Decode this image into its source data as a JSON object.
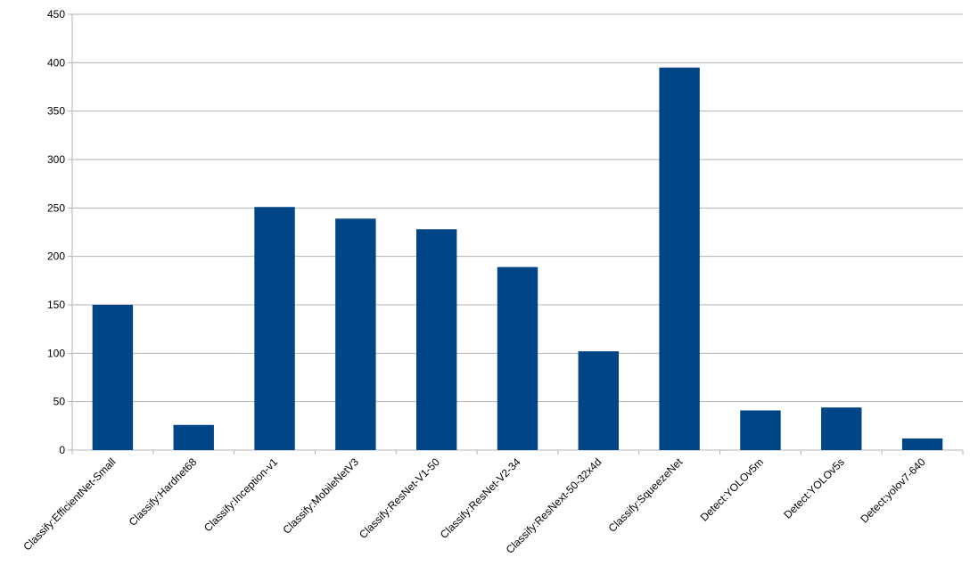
{
  "chart_data": {
    "type": "bar",
    "categories": [
      "Classify:EfficientNet-Small",
      "Classify:Hardnet68",
      "Classify:Inception-v1",
      "Classify:MobileNetV3",
      "Classify:ResNet-V1-50",
      "Classify:ResNet-V2-34",
      "Classify:ResNext-50-32x4d",
      "Classify:SqueezeNet",
      "Detect:YOLOv5m",
      "Detect:YOLOv5s",
      "Detect:yolov7-640"
    ],
    "values": [
      150,
      26,
      251,
      239,
      228,
      189,
      102,
      395,
      41,
      44,
      12
    ],
    "color": "#004586",
    "ylim": [
      0,
      450
    ],
    "yticks": [
      0,
      50,
      100,
      150,
      200,
      250,
      300,
      350,
      400,
      450
    ],
    "grid": true
  }
}
